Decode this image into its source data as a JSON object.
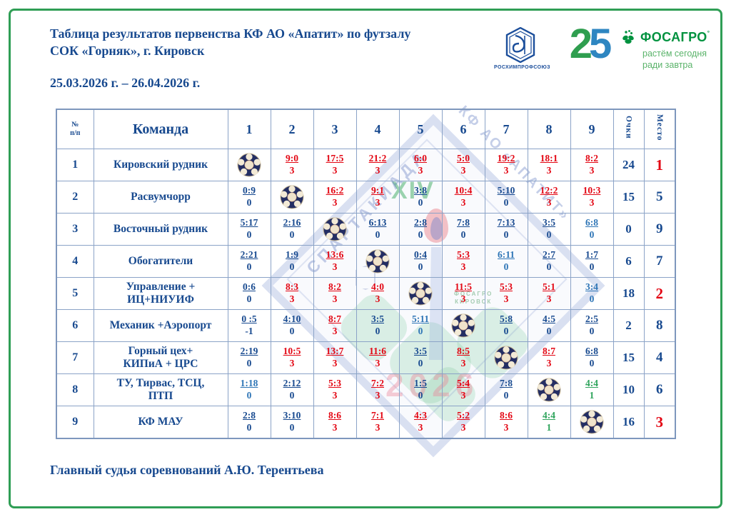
{
  "page": {
    "title_line1": "Таблица результатов первенства КФ АО «Апатит» по футзалу",
    "title_line2": "СОК «Горняк», г. Кировск",
    "dates": "25.03.2026 г. – 26.04.2026 г.",
    "footer": "Главный судья соревнований А.Ю. Терентьева"
  },
  "logos": {
    "union_caption": "РОСХИМПРОФСОЮЗ",
    "anniversary": "25",
    "brand": "ФОСАГРО",
    "brand_mark": "°",
    "tagline_line1": "растём сегодня",
    "tagline_line2": "ради завтра"
  },
  "watermark": {
    "roman": "XIV",
    "year": "2026",
    "diag_text1": "СПАРТАКИАДА",
    "diag_text2": "КФ АО «АПАТИТ»",
    "mini_brand_line1": "ФОСАГРО",
    "mini_brand_line2": "КИРОВСК"
  },
  "colors": {
    "blue": "#17498f",
    "red": "#e30613",
    "light_blue": "#2e75b6",
    "green_draw": "#2fa45c",
    "frame_green": "#2f9e55",
    "grid": "#8ba3c7"
  },
  "table": {
    "headers": {
      "num_lines": [
        "№",
        "п/п"
      ],
      "team": "Команда",
      "rounds": [
        "1",
        "2",
        "3",
        "4",
        "5",
        "6",
        "7",
        "8",
        "9"
      ],
      "points": "Очки",
      "place": "Место"
    },
    "rows": [
      {
        "num": "1",
        "team": [
          "Кировский рудник"
        ],
        "cells": [
          {
            "self": true
          },
          {
            "s": "9:0",
            "p": "3",
            "t": "win"
          },
          {
            "s": "17:5",
            "p": "3",
            "t": "win"
          },
          {
            "s": "21:2",
            "p": "3",
            "t": "win"
          },
          {
            "s": "6:0",
            "p": "3",
            "t": "win"
          },
          {
            "s": "5:0",
            "p": "3",
            "t": "win"
          },
          {
            "s": "19:2",
            "p": "3",
            "t": "win"
          },
          {
            "s": "18:1",
            "p": "3",
            "t": "win"
          },
          {
            "s": "8:2",
            "p": "3",
            "t": "win"
          }
        ],
        "points": "24",
        "place": "1",
        "top": true
      },
      {
        "num": "2",
        "team": [
          "Расвумчорр"
        ],
        "cells": [
          {
            "s": "0:9",
            "p": "0",
            "t": "loss"
          },
          {
            "self": true
          },
          {
            "s": "16:2",
            "p": "3",
            "t": "win"
          },
          {
            "s": "9:1",
            "p": "3",
            "t": "win"
          },
          {
            "s": "3:8",
            "p": "0",
            "t": "loss"
          },
          {
            "s": "10:4",
            "p": "3",
            "t": "win"
          },
          {
            "s": "5:10",
            "p": "0",
            "t": "loss"
          },
          {
            "s": "12:2",
            "p": "3",
            "t": "win"
          },
          {
            "s": "10:3",
            "p": "3",
            "t": "win"
          }
        ],
        "points": "15",
        "place": "5",
        "top": false
      },
      {
        "num": "3",
        "team": [
          "Восточный рудник"
        ],
        "cells": [
          {
            "s": "5:17",
            "p": "0",
            "t": "loss"
          },
          {
            "s": "2:16",
            "p": "0",
            "t": "loss"
          },
          {
            "self": true
          },
          {
            "s": "6:13",
            "p": "0",
            "t": "loss"
          },
          {
            "s": "2:8",
            "p": "0",
            "t": "loss"
          },
          {
            "s": "7:8",
            "p": "0",
            "t": "loss"
          },
          {
            "s": "7:13",
            "p": "0",
            "t": "loss"
          },
          {
            "s": "3:5",
            "p": "0",
            "t": "loss"
          },
          {
            "s": "6:8",
            "p": "0",
            "t": "loss2"
          }
        ],
        "points": "0",
        "place": "9",
        "top": false
      },
      {
        "num": "4",
        "team": [
          "Обогатители"
        ],
        "cells": [
          {
            "s": "2:21",
            "p": "0",
            "t": "loss"
          },
          {
            "s": "1:9",
            "p": "0",
            "t": "loss"
          },
          {
            "s": "13:6",
            "p": "3",
            "t": "win"
          },
          {
            "self": true
          },
          {
            "s": "0:4",
            "p": "0",
            "t": "loss"
          },
          {
            "s": "5:3",
            "p": "3",
            "t": "win"
          },
          {
            "s": "6:11",
            "p": "0",
            "t": "loss2"
          },
          {
            "s": "2:7",
            "p": "0",
            "t": "loss"
          },
          {
            "s": "1:7",
            "p": "0",
            "t": "loss"
          }
        ],
        "points": "6",
        "place": "7",
        "top": false
      },
      {
        "num": "5",
        "team": [
          "Управление +",
          "ИЦ+НИУИФ"
        ],
        "cells": [
          {
            "s": "0:6",
            "p": "0",
            "t": "loss"
          },
          {
            "s": "8:3",
            "p": "3",
            "t": "win"
          },
          {
            "s": "8:2",
            "p": "3",
            "t": "win"
          },
          {
            "s": "4:0",
            "p": "3",
            "t": "win"
          },
          {
            "self": true
          },
          {
            "s": "11:5",
            "p": "3",
            "t": "win"
          },
          {
            "s": "5:3",
            "p": "3",
            "t": "win"
          },
          {
            "s": "5:1",
            "p": "3",
            "t": "win"
          },
          {
            "s": "3:4",
            "p": "0",
            "t": "loss2"
          }
        ],
        "points": "18",
        "place": "2",
        "top": true
      },
      {
        "num": "6",
        "team": [
          "Механик +Аэропорт"
        ],
        "cells": [
          {
            "s": "0 :5",
            "p": "-1",
            "t": "loss"
          },
          {
            "s": "4:10",
            "p": "0",
            "t": "loss"
          },
          {
            "s": "8:7",
            "p": "3",
            "t": "win"
          },
          {
            "s": "3:5",
            "p": "0",
            "t": "loss"
          },
          {
            "s": "5:11",
            "p": "0",
            "t": "loss2"
          },
          {
            "self": true
          },
          {
            "s": "5:8",
            "p": "0",
            "t": "loss"
          },
          {
            "s": "4:5",
            "p": "0",
            "t": "loss"
          },
          {
            "s": "2:5",
            "p": "0",
            "t": "loss"
          }
        ],
        "points": "2",
        "place": "8",
        "top": false
      },
      {
        "num": "7",
        "team": [
          "Горный цех+",
          "КИПиА + ЦРС"
        ],
        "cells": [
          {
            "s": "2:19",
            "p": "0",
            "t": "loss"
          },
          {
            "s": "10:5",
            "p": "3",
            "t": "win"
          },
          {
            "s": "13:7",
            "p": "3",
            "t": "win"
          },
          {
            "s": "11:6",
            "p": "3",
            "t": "win"
          },
          {
            "s": "3:5",
            "p": "0",
            "t": "loss"
          },
          {
            "s": "8:5",
            "p": "3",
            "t": "win"
          },
          {
            "self": true
          },
          {
            "s": "8:7",
            "p": "3",
            "t": "win"
          },
          {
            "s": "6:8",
            "p": "0",
            "t": "loss"
          }
        ],
        "points": "15",
        "place": "4",
        "top": false
      },
      {
        "num": "8",
        "team": [
          "ТУ, Тирвас, ТСЦ,",
          "ПТП"
        ],
        "cells": [
          {
            "s": "1:18",
            "p": "0",
            "t": "loss2"
          },
          {
            "s": "2:12",
            "p": "0",
            "t": "loss"
          },
          {
            "s": "5:3",
            "p": "3",
            "t": "win"
          },
          {
            "s": "7:2",
            "p": "3",
            "t": "win"
          },
          {
            "s": "1:5",
            "p": "0",
            "t": "loss"
          },
          {
            "s": "5:4",
            "p": "3",
            "t": "win"
          },
          {
            "s": "7:8",
            "p": "0",
            "t": "loss"
          },
          {
            "self": true
          },
          {
            "s": "4:4",
            "p": "1",
            "t": "draw"
          }
        ],
        "points": "10",
        "place": "6",
        "top": false
      },
      {
        "num": "9",
        "team": [
          "КФ МАУ"
        ],
        "cells": [
          {
            "s": "2:8",
            "p": "0",
            "t": "loss"
          },
          {
            "s": "3:10",
            "p": "0",
            "t": "loss"
          },
          {
            "s": "8:6",
            "p": "3",
            "t": "win"
          },
          {
            "s": "7:1",
            "p": "3",
            "t": "win"
          },
          {
            "s": "4:3",
            "p": "3",
            "t": "win"
          },
          {
            "s": "5:2",
            "p": "3",
            "t": "win"
          },
          {
            "s": "8:6",
            "p": "3",
            "t": "win"
          },
          {
            "s": "4:4",
            "p": "1",
            "t": "draw"
          },
          {
            "self": true
          }
        ],
        "points": "16",
        "place": "3",
        "top": true
      }
    ]
  }
}
